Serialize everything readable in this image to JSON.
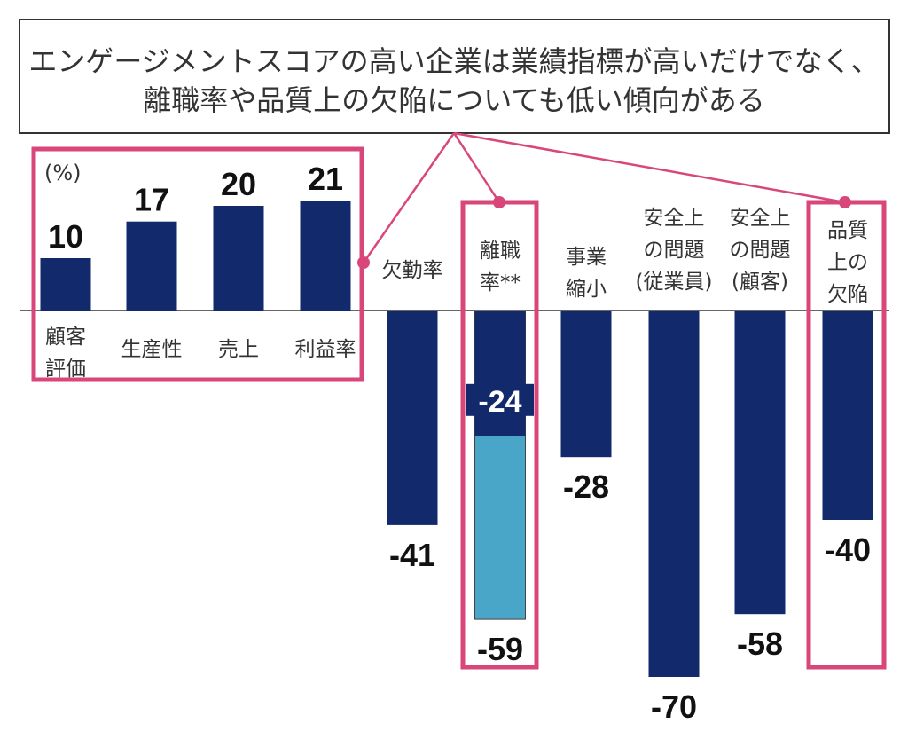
{
  "chart_data": {
    "type": "bar",
    "title_lines": [
      "エンゲージメントスコアの高い企業は業績指標が高いだけでなく、",
      "離職率や品質上の欠陥についても低い傾向がある"
    ],
    "unit_label": "(%)",
    "categories": [
      "顧客\n評価",
      "生産性",
      "売上",
      "利益率",
      "欠勤率",
      "離職\n率**",
      "事業\n縮小",
      "安全上\nの問題\n(従業員)",
      "安全上\nの問題\n(顧客)",
      "品質\n上の\n欠陥"
    ],
    "values": [
      10,
      17,
      20,
      21,
      -41,
      -24,
      -28,
      -70,
      -58,
      -40
    ],
    "value_labels": [
      "10",
      "17",
      "20",
      "21",
      "-41",
      "-24",
      "-28",
      "-70",
      "-58",
      "-40"
    ],
    "extra_segment": {
      "category": "離職\n率**",
      "value": -59,
      "label": "-59"
    },
    "ylim": [
      -70,
      21
    ],
    "grid": false,
    "colors": {
      "bar": "#122a6b",
      "extra_segment": "#4aa6c9",
      "highlight": "#d9467a",
      "title_border": "#333333"
    }
  }
}
